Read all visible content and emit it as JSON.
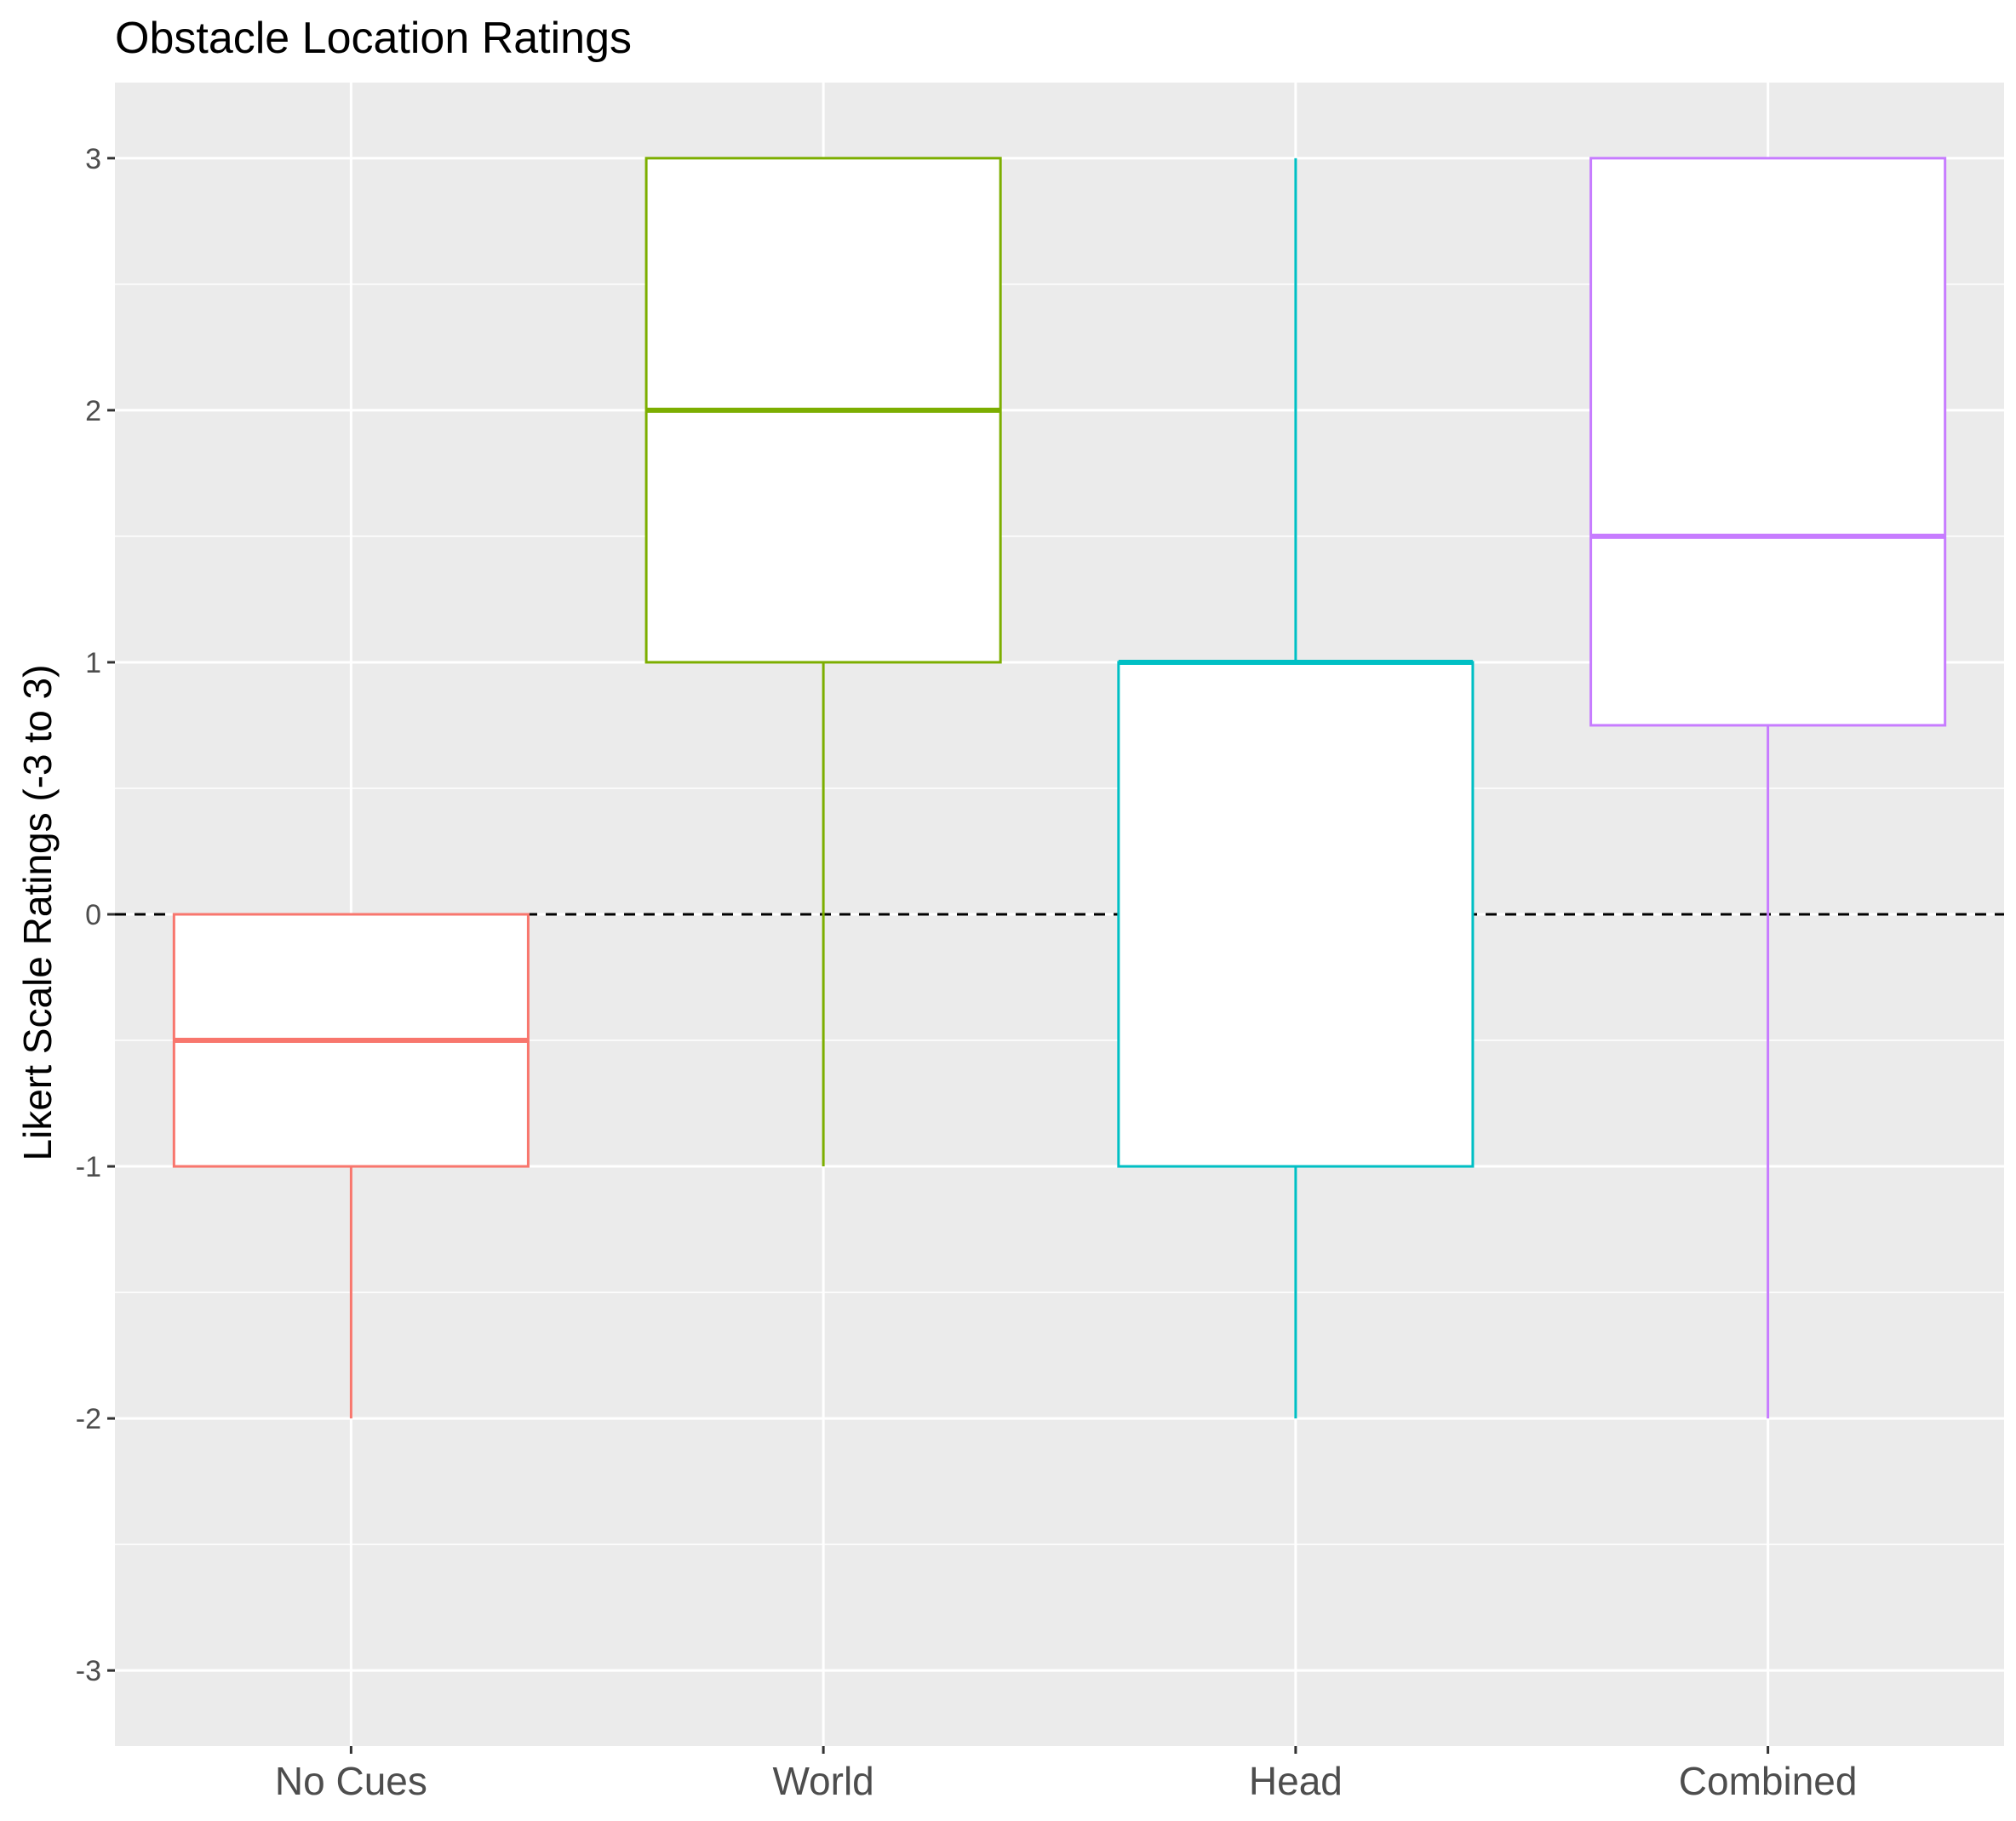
{
  "chart_data": {
    "type": "boxplot",
    "title": "Obstacle Location Ratings",
    "xlabel": "",
    "ylabel": "Likert Scale Ratings (-3 to 3)",
    "ylim": [
      -3.3,
      3.3
    ],
    "yticks": [
      -3,
      -2,
      -1,
      0,
      1,
      2,
      3
    ],
    "ytick_labels": [
      "-3",
      "-2",
      "-1",
      "0",
      "1",
      "2",
      "3"
    ],
    "categories": [
      "No Cues",
      "World",
      "Head",
      "Combined"
    ],
    "reference_line": {
      "y": 0,
      "style": "dashed",
      "color": "#000000"
    },
    "background": "#ebebeb",
    "grid": true,
    "legend": "none",
    "series": [
      {
        "category": "No Cues",
        "min": -2,
        "q1": -1,
        "median": -0.5,
        "q3": 0,
        "max": 0,
        "color": "#f8766d"
      },
      {
        "category": "World",
        "min": -1,
        "q1": 1,
        "median": 2,
        "q3": 3,
        "max": 3,
        "color": "#7cae00"
      },
      {
        "category": "Head",
        "min": -2,
        "q1": -1,
        "median": 1,
        "q3": 1,
        "max": 3,
        "color": "#00bfc4"
      },
      {
        "category": "Combined",
        "min": -2,
        "q1": 0.75,
        "median": 1.5,
        "q3": 3,
        "max": 3,
        "color": "#c77cff"
      }
    ]
  }
}
